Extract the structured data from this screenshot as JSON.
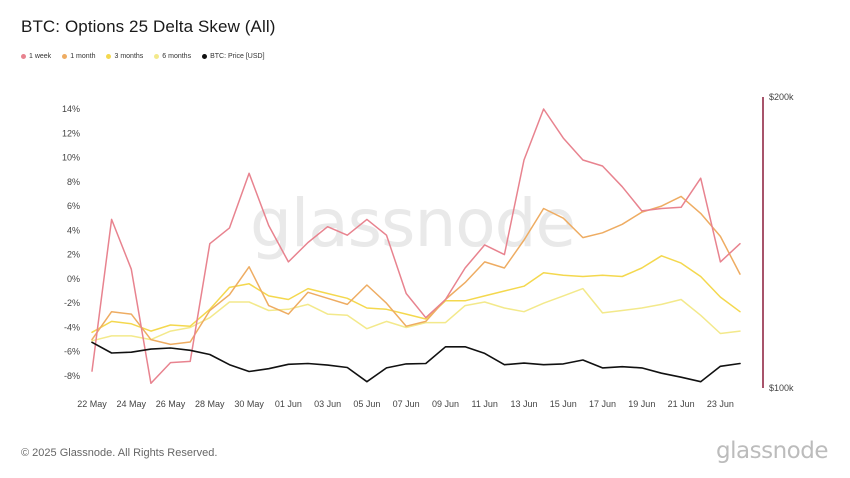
{
  "title": "BTC: Options 25 Delta Skew (All)",
  "watermark": "glassnode",
  "footer": {
    "copyright": "© 2025 Glassnode. All Rights Reserved.",
    "logo": "glassnode"
  },
  "legend": [
    {
      "label": "1 week",
      "color": "#e8838f"
    },
    {
      "label": "1 month",
      "color": "#eeac62"
    },
    {
      "label": "3 months",
      "color": "#f4d84e"
    },
    {
      "label": "6 months",
      "color": "#f3e98b"
    },
    {
      "label": "BTC: Price [USD]",
      "color": "#111111"
    }
  ],
  "chart_data": {
    "type": "line",
    "title": "BTC: Options 25 Delta Skew (All)",
    "x": [
      "22 May",
      "23 May",
      "24 May",
      "25 May",
      "26 May",
      "27 May",
      "28 May",
      "29 May",
      "30 May",
      "31 May",
      "01 Jun",
      "02 Jun",
      "03 Jun",
      "04 Jun",
      "05 Jun",
      "06 Jun",
      "07 Jun",
      "08 Jun",
      "09 Jun",
      "10 Jun",
      "11 Jun",
      "12 Jun",
      "13 Jun",
      "14 Jun",
      "15 Jun",
      "16 Jun",
      "17 Jun",
      "18 Jun",
      "19 Jun",
      "20 Jun",
      "21 Jun",
      "22 Jun",
      "23 Jun",
      "24 Jun"
    ],
    "x_tick_labels": [
      "22 May",
      "24 May",
      "26 May",
      "28 May",
      "30 May",
      "01 Jun",
      "03 Jun",
      "05 Jun",
      "07 Jun",
      "09 Jun",
      "11 Jun",
      "13 Jun",
      "15 Jun",
      "17 Jun",
      "19 Jun",
      "21 Jun",
      "23 Jun"
    ],
    "y_left": {
      "ticks": [
        -8,
        -6,
        -4,
        -2,
        0,
        2,
        4,
        6,
        8,
        10,
        12,
        14
      ],
      "tick_labels": [
        "-8%",
        "-6%",
        "-4%",
        "-2%",
        "0%",
        "2%",
        "4%",
        "6%",
        "8%",
        "10%",
        "12%",
        "14%"
      ],
      "ylim": [
        -9,
        15
      ]
    },
    "y_right": {
      "tick_labels": [
        "$100k",
        "$200k"
      ],
      "log": true,
      "ylim": [
        100000,
        200000
      ]
    },
    "legend_position": "top-left",
    "grid": false,
    "series": [
      {
        "name": "1 week",
        "color": "#e8838f",
        "axis": "left",
        "values": [
          -7.6,
          4.9,
          0.8,
          -8.6,
          -6.9,
          -6.8,
          2.9,
          4.2,
          8.7,
          4.4,
          1.4,
          3.0,
          4.3,
          3.6,
          4.9,
          3.6,
          -1.2,
          -3.2,
          -1.7,
          0.9,
          2.8,
          2.0,
          9.8,
          14.0,
          11.6,
          9.8,
          9.3,
          7.6,
          5.6,
          5.8,
          5.9,
          8.3,
          1.4,
          2.9
        ]
      },
      {
        "name": "1 month",
        "color": "#eeac62",
        "axis": "left",
        "values": [
          -5.0,
          -2.7,
          -2.9,
          -5.0,
          -5.4,
          -5.2,
          -2.6,
          -1.3,
          1.0,
          -2.2,
          -2.9,
          -1.1,
          -1.6,
          -2.1,
          -0.5,
          -2.0,
          -3.9,
          -3.5,
          -1.7,
          -0.3,
          1.4,
          0.9,
          3.2,
          5.8,
          5.0,
          3.4,
          3.8,
          4.5,
          5.5,
          6.0,
          6.8,
          5.4,
          3.5,
          0.4
        ]
      },
      {
        "name": "3 months",
        "color": "#f4d84e",
        "axis": "left",
        "values": [
          -4.4,
          -3.5,
          -3.7,
          -4.3,
          -3.8,
          -3.9,
          -2.5,
          -0.7,
          -0.4,
          -1.4,
          -1.7,
          -0.8,
          -1.2,
          -1.6,
          -2.4,
          -2.5,
          -2.9,
          -3.3,
          -1.8,
          -1.8,
          -1.4,
          -1.0,
          -0.6,
          0.5,
          0.3,
          0.2,
          0.3,
          0.2,
          0.9,
          1.9,
          1.3,
          0.2,
          -1.5,
          -2.7
        ]
      },
      {
        "name": "6 months",
        "color": "#f3e98b",
        "axis": "left",
        "values": [
          -5.1,
          -4.7,
          -4.7,
          -5.0,
          -4.3,
          -4.0,
          -3.2,
          -1.9,
          -1.9,
          -2.6,
          -2.5,
          -2.1,
          -2.9,
          -3.0,
          -4.1,
          -3.5,
          -4.0,
          -3.6,
          -3.6,
          -2.2,
          -1.9,
          -2.4,
          -2.7,
          -2.0,
          -1.4,
          -0.8,
          -2.8,
          -2.6,
          -2.4,
          -2.1,
          -1.7,
          -3.0,
          -4.5,
          -4.3
        ]
      },
      {
        "name": "BTC: Price [USD]",
        "color": "#111111",
        "axis": "right",
        "values": [
          111500,
          108700,
          108900,
          109700,
          110000,
          109400,
          108300,
          105700,
          104000,
          104700,
          105800,
          106000,
          105600,
          105000,
          101500,
          104900,
          105900,
          106000,
          110300,
          110300,
          108600,
          105700,
          106100,
          105700,
          105900,
          106900,
          104900,
          105200,
          104900,
          103600,
          102600,
          101500,
          105300,
          106000
        ]
      }
    ]
  }
}
